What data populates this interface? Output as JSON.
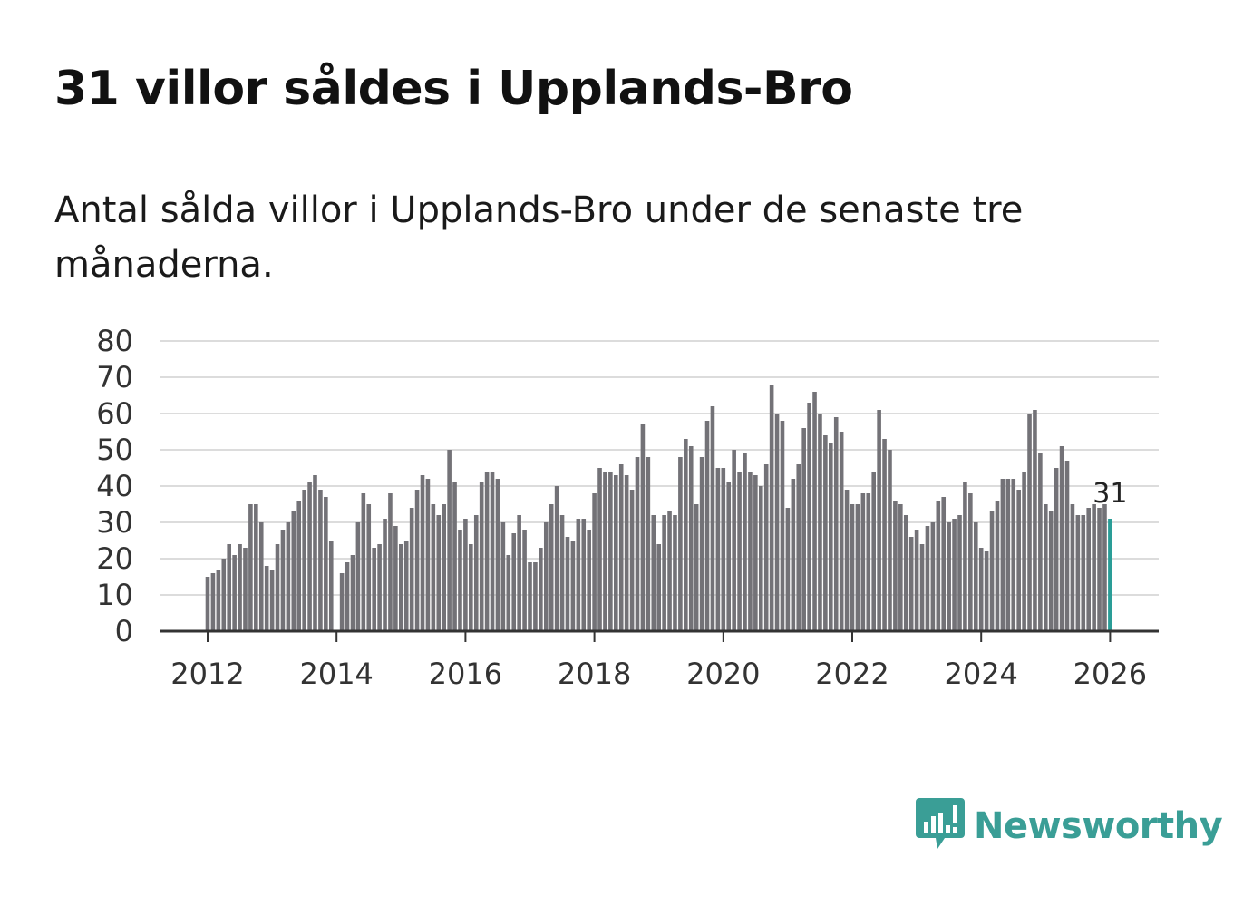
{
  "header": {
    "title": "31 villor såldes i Upplands-Bro",
    "subtitle": "Antal sålda villor i Upplands-Bro under de senaste tre månaderna."
  },
  "chart_data": {
    "type": "bar",
    "title": "31 villor såldes i Upplands-Bro",
    "subtitle": "Antal sålda villor i Upplands-Bro under de senaste tre månaderna.",
    "xlabel": "",
    "ylabel": "",
    "ylim": [
      0,
      80
    ],
    "yticks": [
      0,
      10,
      20,
      30,
      40,
      50,
      60,
      70,
      80
    ],
    "xticks": [
      "2012",
      "2014",
      "2016",
      "2018",
      "2020",
      "2022",
      "2024",
      "2026"
    ],
    "start": "2012-01",
    "interval": "month",
    "grid": true,
    "colors": {
      "bar": "#737277",
      "highlight": "#2a9d97",
      "grid": "#dcdcdc",
      "axis": "#333333"
    },
    "series": [
      {
        "name": "Antal sålda villor",
        "values": [
          15,
          16,
          17,
          20,
          24,
          21,
          24,
          23,
          35,
          35,
          30,
          18,
          17,
          24,
          28,
          30,
          33,
          36,
          39,
          41,
          43,
          39,
          37,
          25,
          null,
          16,
          19,
          21,
          30,
          38,
          35,
          23,
          24,
          31,
          38,
          29,
          24,
          25,
          34,
          39,
          43,
          42,
          35,
          32,
          35,
          50,
          41,
          28,
          31,
          24,
          32,
          41,
          44,
          44,
          42,
          30,
          21,
          27,
          32,
          28,
          19,
          19,
          23,
          30,
          35,
          40,
          32,
          26,
          25,
          31,
          31,
          28,
          38,
          45,
          44,
          44,
          43,
          46,
          43,
          39,
          48,
          57,
          48,
          32,
          24,
          32,
          33,
          32,
          48,
          53,
          51,
          35,
          48,
          58,
          62,
          45,
          45,
          41,
          50,
          44,
          49,
          44,
          43,
          40,
          46,
          68,
          60,
          58,
          34,
          42,
          46,
          56,
          63,
          66,
          60,
          54,
          52,
          59,
          55,
          39,
          35,
          35,
          38,
          38,
          44,
          61,
          53,
          50,
          36,
          35,
          32,
          26,
          28,
          24,
          29,
          30,
          36,
          37,
          30,
          31,
          32,
          41,
          38,
          30,
          23,
          22,
          33,
          36,
          42,
          42,
          42,
          39,
          44,
          60,
          61,
          49,
          35,
          33,
          45,
          51,
          47,
          35,
          32,
          32,
          34,
          35,
          34,
          35,
          31
        ]
      }
    ],
    "annotation": {
      "label": "31",
      "target": "last"
    }
  },
  "brand": {
    "name": "Newsworthy"
  }
}
